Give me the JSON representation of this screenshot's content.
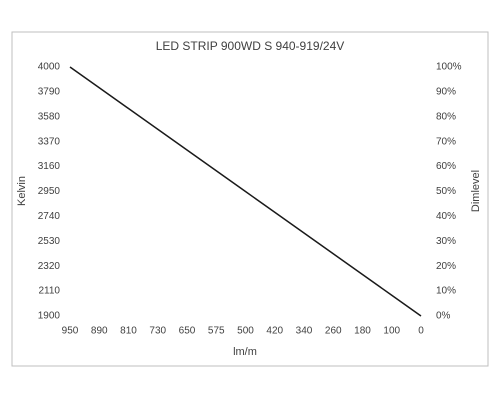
{
  "chart_data": {
    "type": "line",
    "title": "LED STRIP 900WD S 940-919/24V",
    "x_label": "lm/m",
    "y_label": "Kelvin",
    "y2_label": "Dimlevel",
    "categories": [
      "950",
      "890",
      "810",
      "730",
      "650",
      "575",
      "500",
      "420",
      "340",
      "260",
      "180",
      "100",
      "0"
    ],
    "series": [
      {
        "name": "Kelvin",
        "color": "#1a1a1a",
        "values": [
          4000,
          3825,
          3650,
          3475,
          3300,
          3125,
          2950,
          2775,
          2600,
          2425,
          2250,
          2075,
          1900
        ]
      }
    ],
    "ylim": [
      1900,
      4000
    ],
    "yticks": [
      1900,
      2110,
      2320,
      2530,
      2740,
      2950,
      3160,
      3370,
      3580,
      3790,
      4000
    ],
    "y2lim": [
      0,
      100
    ],
    "y2ticks": [
      {
        "value": 0,
        "label": "0%"
      },
      {
        "value": 10,
        "label": "10%"
      },
      {
        "value": 20,
        "label": "20%"
      },
      {
        "value": 30,
        "label": "30%"
      },
      {
        "value": 40,
        "label": "40%"
      },
      {
        "value": 50,
        "label": "50%"
      },
      {
        "value": 60,
        "label": "60%"
      },
      {
        "value": 70,
        "label": "70%"
      },
      {
        "value": 80,
        "label": "80%"
      },
      {
        "value": 90,
        "label": "90%"
      },
      {
        "value": 100,
        "label": "100%"
      }
    ],
    "grid": false
  }
}
